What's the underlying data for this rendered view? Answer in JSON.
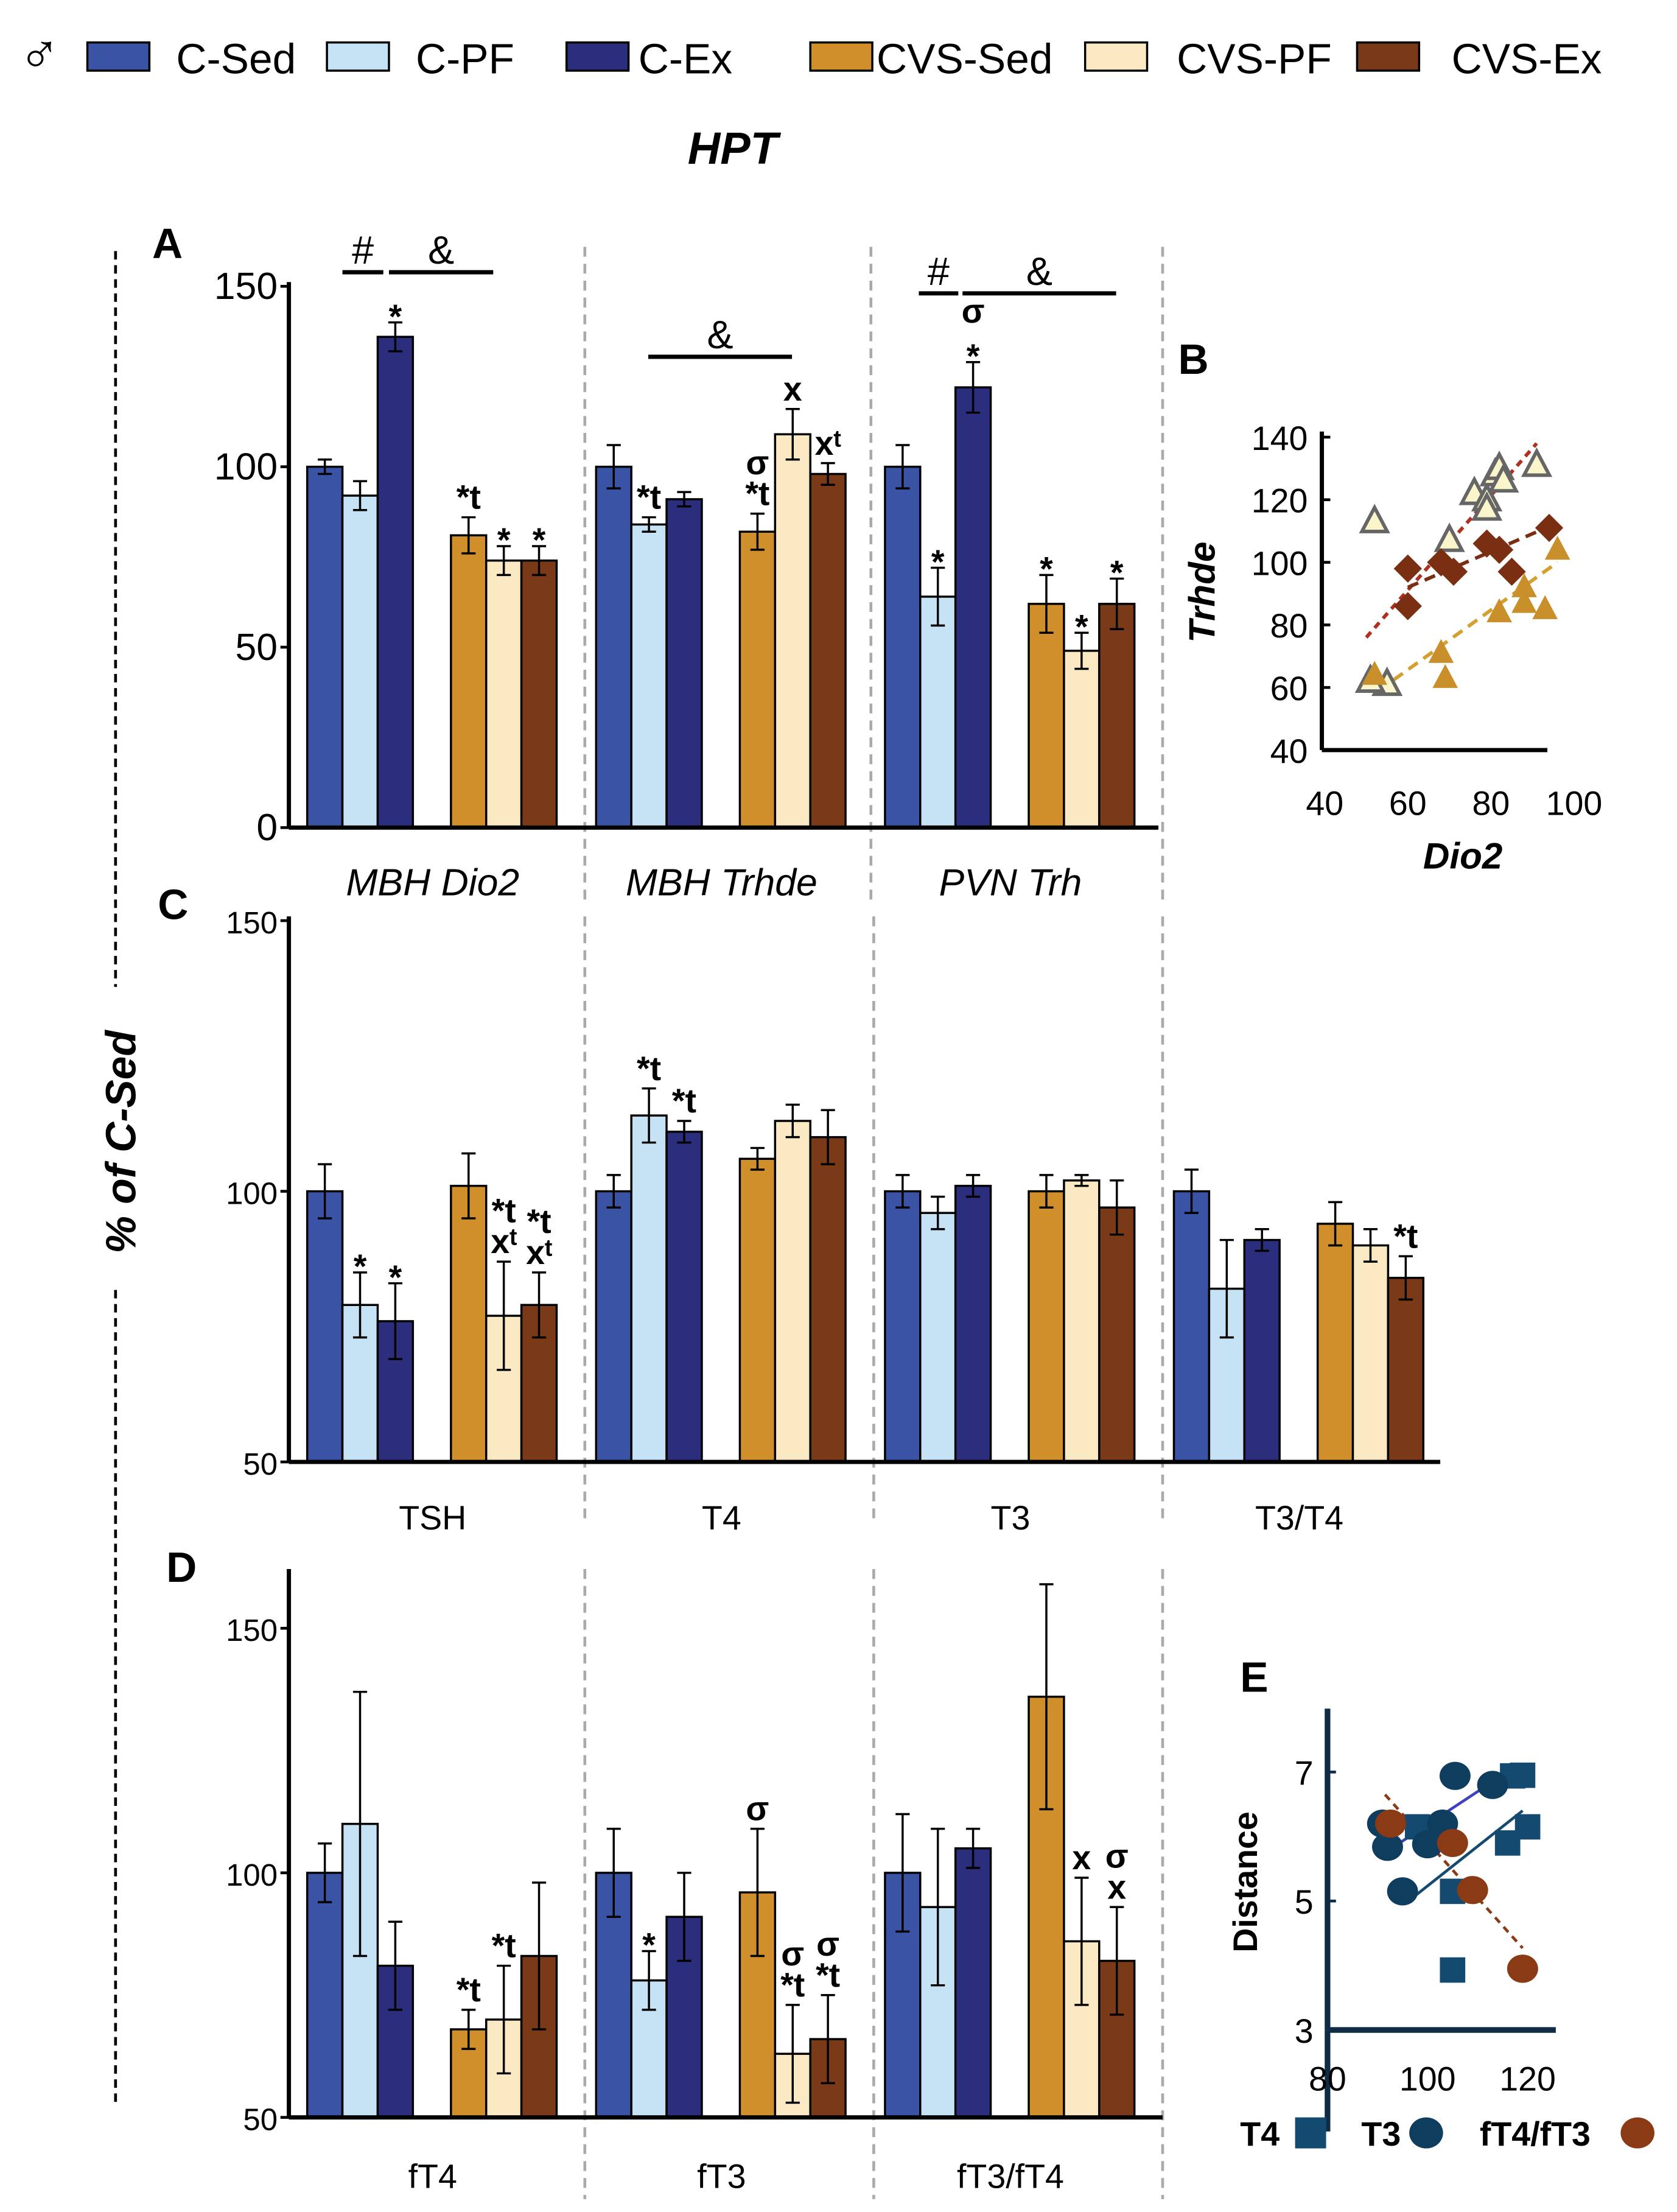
{
  "legend": {
    "sex_symbol": "♂",
    "items": [
      {
        "label": "C-Sed",
        "color": "#3a53a4"
      },
      {
        "label": "C-PF",
        "color": "#c6e2f5"
      },
      {
        "label": "C-Ex",
        "color": "#2b2e7c"
      },
      {
        "label": "CVS-Sed",
        "color": "#d18f2c"
      },
      {
        "label": "CVS-PF",
        "color": "#fbe9c3"
      },
      {
        "label": "CVS-Ex",
        "color": "#7a3a17"
      }
    ]
  },
  "title": "HPT",
  "shared_ylabel": "% of C-Sed",
  "chart_data": [
    {
      "panel": "A",
      "type": "bar",
      "ylim": [
        0,
        150
      ],
      "yticks": [
        0,
        50,
        100,
        150
      ],
      "categories": [
        "MBH Dio2",
        "MBH Trhde",
        "PVN Trh"
      ],
      "series_order": [
        "C-Sed",
        "C-PF",
        "C-Ex",
        "CVS-Sed",
        "CVS-PF",
        "CVS-Ex"
      ],
      "values": [
        [
          100,
          92,
          136,
          81,
          74,
          74
        ],
        [
          100,
          84,
          91,
          82,
          109,
          98
        ],
        [
          100,
          64,
          122,
          62,
          49,
          62
        ]
      ],
      "errors": [
        [
          2,
          4,
          4,
          5,
          4,
          4
        ],
        [
          6,
          2,
          2,
          5,
          7,
          3
        ],
        [
          6,
          8,
          7,
          8,
          5,
          7
        ]
      ],
      "annotations": [
        [
          [],
          [],
          [
            "*"
          ],
          [
            "*t"
          ],
          [
            "*"
          ],
          [
            "*"
          ]
        ],
        [
          [],
          [
            "*t"
          ],
          [],
          [
            "σ",
            "*t"
          ],
          [
            "x"
          ],
          [
            "xᵗ"
          ]
        ],
        [
          [],
          [
            "*"
          ],
          [
            "σ",
            "*"
          ],
          [
            "*"
          ],
          [
            "*"
          ],
          [
            "*"
          ]
        ]
      ],
      "brackets": [
        {
          "group": 0,
          "label": "#"
        },
        {
          "group": 0,
          "label": "&"
        },
        {
          "group": 1,
          "label": "&"
        },
        {
          "group": 2,
          "label": "#"
        },
        {
          "group": 2,
          "label": "&"
        }
      ]
    },
    {
      "panel": "B",
      "type": "scatter",
      "xlabel": "Dio2",
      "ylabel": "Trhde",
      "xlim": [
        40,
        100
      ],
      "ylim": [
        40,
        140
      ],
      "xticks": [
        40,
        60,
        80,
        100
      ],
      "yticks": [
        40,
        60,
        80,
        100,
        120,
        140
      ],
      "series": [
        {
          "group": "CVS-PF",
          "marker": "open-triangle",
          "color": "#fbf5cc",
          "points": [
            [
              52,
              113
            ],
            [
              55,
              61
            ],
            [
              51,
              62
            ],
            [
              70,
              107
            ],
            [
              76,
              122
            ],
            [
              79,
              120
            ],
            [
              79,
              117
            ],
            [
              81,
              128
            ],
            [
              82,
              130
            ],
            [
              83,
              126
            ],
            [
              91,
              131
            ]
          ],
          "trend": [
            [
              50,
              76
            ],
            [
              91,
              138
            ]
          ]
        },
        {
          "group": "CVS-Ex",
          "marker": "diamond",
          "color": "#7a2e12",
          "points": [
            [
              60,
              98
            ],
            [
              60,
              86
            ],
            [
              68,
              100
            ],
            [
              71,
              97
            ],
            [
              79,
              106
            ],
            [
              82,
              104
            ],
            [
              85,
              97
            ],
            [
              94,
              111
            ]
          ],
          "trend": [
            [
              60,
              92
            ],
            [
              95,
              112
            ]
          ]
        },
        {
          "group": "CVS-Sed",
          "marker": "triangle",
          "color": "#c98f2a",
          "points": [
            [
              52,
              64
            ],
            [
              68,
              71
            ],
            [
              69,
              63
            ],
            [
              82,
              84
            ],
            [
              88,
              92
            ],
            [
              88,
              87
            ],
            [
              93,
              85
            ],
            [
              96,
              104
            ]
          ],
          "trend": [
            [
              53,
              59
            ],
            [
              96,
              100
            ]
          ]
        }
      ]
    },
    {
      "panel": "C",
      "type": "bar",
      "ylim": [
        50,
        150
      ],
      "yticks": [
        50,
        100,
        150
      ],
      "categories": [
        "TSH",
        "T4",
        "T3",
        "T3/T4"
      ],
      "series_order": [
        "C-Sed",
        "C-PF",
        "C-Ex",
        "CVS-Sed",
        "CVS-PF",
        "CVS-Ex"
      ],
      "values": [
        [
          100,
          79,
          76,
          101,
          77,
          79
        ],
        [
          100,
          114,
          111,
          106,
          113,
          110
        ],
        [
          100,
          96,
          101,
          100,
          102,
          97
        ],
        [
          100,
          82,
          91,
          94,
          90,
          84
        ]
      ],
      "errors": [
        [
          5,
          6,
          7,
          6,
          10,
          6
        ],
        [
          3,
          5,
          2,
          2,
          3,
          5
        ],
        [
          3,
          3,
          2,
          3,
          1,
          5
        ],
        [
          4,
          9,
          2,
          4,
          3,
          4
        ]
      ],
      "annotations": [
        [
          [],
          [
            "*"
          ],
          [
            "*"
          ],
          [],
          [
            "*t",
            "xᵗ"
          ],
          [
            "*t",
            "xᵗ"
          ]
        ],
        [
          [],
          [
            "*t"
          ],
          [
            "*t"
          ],
          [],
          [],
          []
        ],
        [
          [],
          [],
          [],
          [],
          [],
          []
        ],
        [
          [],
          [],
          [],
          [],
          [],
          [
            "*t"
          ]
        ]
      ]
    },
    {
      "panel": "D",
      "type": "bar",
      "ylim": [
        50,
        160
      ],
      "yticks": [
        50,
        100,
        150
      ],
      "categories": [
        "fT4",
        "fT3",
        "fT3/fT4"
      ],
      "series_order": [
        "C-Sed",
        "C-PF",
        "C-Ex",
        "CVS-Sed",
        "CVS-PF",
        "CVS-Ex"
      ],
      "values": [
        [
          100,
          110,
          81,
          68,
          70,
          83
        ],
        [
          100,
          78,
          91,
          96,
          63,
          66
        ],
        [
          100,
          93,
          105,
          136,
          86,
          82
        ]
      ],
      "errors": [
        [
          6,
          27,
          9,
          4,
          11,
          15
        ],
        [
          9,
          6,
          9,
          13,
          10,
          9
        ],
        [
          12,
          16,
          4,
          23,
          13,
          11
        ]
      ],
      "annotations": [
        [
          [],
          [],
          [],
          [
            "*t"
          ],
          [
            "*t"
          ],
          []
        ],
        [
          [],
          [
            "*"
          ],
          [],
          [
            "σ"
          ],
          [
            "σ",
            "*t"
          ],
          [
            "σ",
            "*t"
          ]
        ],
        [
          [],
          [],
          [],
          [],
          [
            "x"
          ],
          [
            "σ",
            "x"
          ]
        ]
      ]
    },
    {
      "panel": "E",
      "type": "scatter",
      "ylabel": "Distance",
      "xlim": [
        80,
        130
      ],
      "ylim": [
        3,
        8
      ],
      "xticks": [
        80,
        100,
        120
      ],
      "yticks": [
        3,
        5,
        7
      ],
      "series": [
        {
          "name": "T4",
          "marker": "square",
          "color": "#154a70",
          "points": [
            [
              98,
              6.15
            ],
            [
              105,
              5.15
            ],
            [
              105,
              3.93
            ],
            [
              116,
              5.9
            ],
            [
              117,
              6.94
            ],
            [
              119,
              6.95
            ],
            [
              120,
              6.15
            ]
          ],
          "trend": [
            [
              97,
              5.05
            ],
            [
              119,
              6.4
            ]
          ]
        },
        {
          "name": "T3",
          "marker": "circle",
          "color": "#0f3d5e",
          "points": [
            [
              91,
              6.2
            ],
            [
              92,
              5.84
            ],
            [
              95,
              5.15
            ],
            [
              100,
              5.88
            ],
            [
              103,
              6.2
            ],
            [
              105.5,
              6.94
            ],
            [
              113,
              6.8
            ]
          ],
          "trend": [
            [
              90.5,
              5.7
            ],
            [
              113,
              6.85
            ]
          ],
          "trend_color": "#4040c0"
        },
        {
          "name": "fT4/fT3",
          "marker": "circle",
          "color": "#8a3a14",
          "points": [
            [
              92.6,
              6.2
            ],
            [
              105,
              5.9
            ],
            [
              109,
              5.17
            ],
            [
              119,
              3.95
            ]
          ],
          "trend": [
            [
              91.5,
              6.65
            ],
            [
              119,
              4.27
            ]
          ]
        }
      ]
    }
  ]
}
